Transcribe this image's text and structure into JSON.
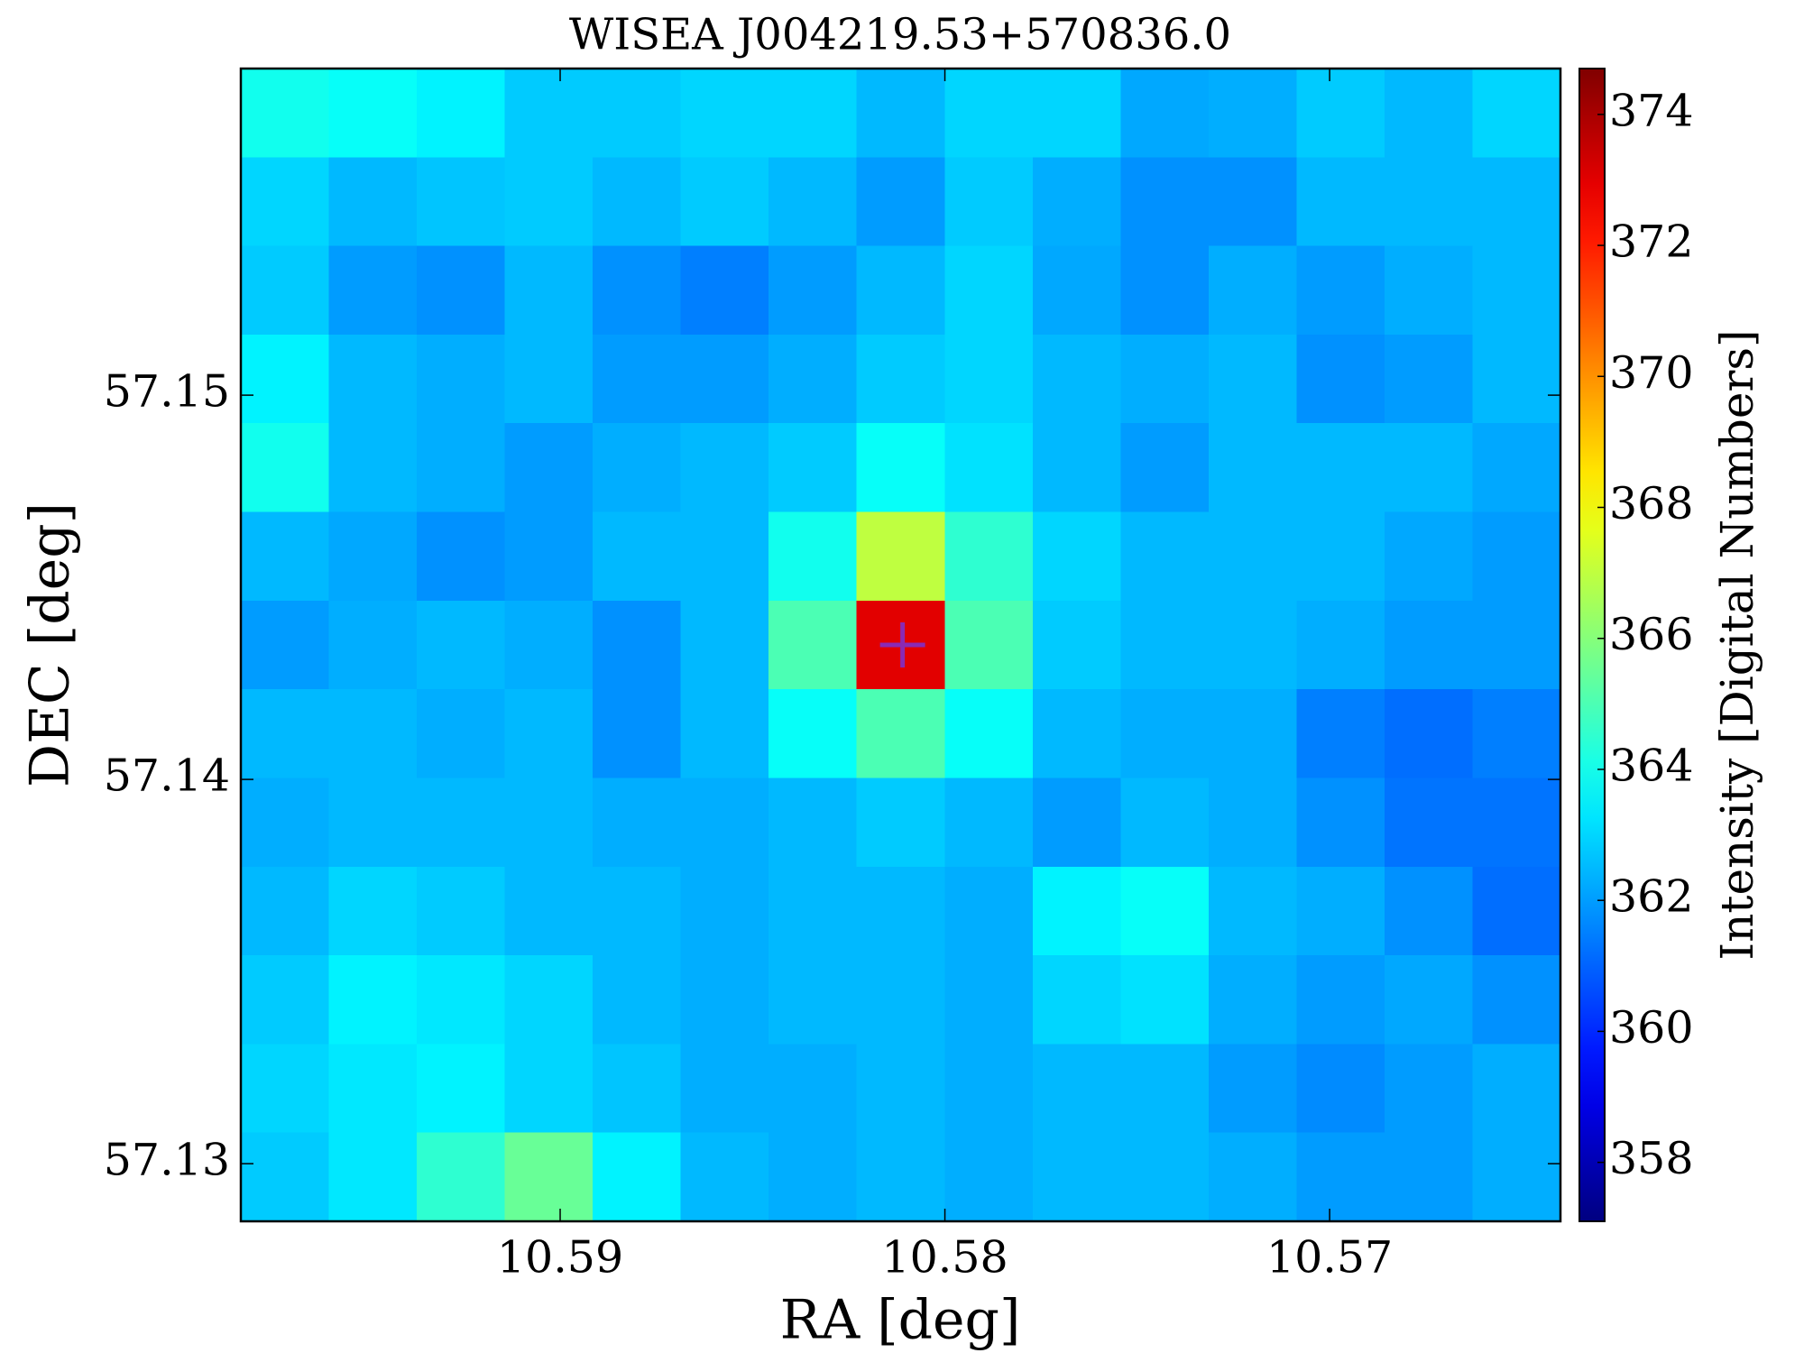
{
  "chart_data": {
    "type": "heatmap",
    "title": "WISEA J004219.53+570836.0",
    "x_label": "RA [deg]",
    "y_label": "DEC [deg]",
    "colorbar_label": "Intensity [Digital Numbers]",
    "colormap": "jet",
    "xlim": [
      10.5983,
      10.564
    ],
    "xticks": [
      10.59,
      10.58,
      10.57
    ],
    "ylim": [
      57.1285,
      57.1585
    ],
    "yticks": [
      57.13,
      57.14,
      57.15
    ],
    "clim": [
      357.1,
      374.7
    ],
    "cticks": [
      358,
      360,
      362,
      364,
      366,
      368,
      370,
      372,
      374
    ],
    "marker": {
      "x": 10.5811,
      "y": 57.1435,
      "color": "#8a2ab4"
    },
    "z": [
      [
        364,
        363.8,
        363.5,
        362.8,
        362.8,
        363,
        363,
        362.5,
        363,
        363,
        362.2,
        362.3,
        362.8,
        362.5,
        363
      ],
      [
        363,
        362.5,
        362.7,
        362.8,
        362.5,
        362.8,
        362.5,
        362,
        362.8,
        362.3,
        361.8,
        361.8,
        362.5,
        362.5,
        362.5
      ],
      [
        362.8,
        362,
        361.8,
        362.5,
        361.8,
        361.5,
        362,
        362.5,
        363,
        362.2,
        361.8,
        362.3,
        362,
        362.3,
        362.5
      ],
      [
        363.5,
        362.5,
        362.3,
        362.5,
        362,
        362,
        362.3,
        362.8,
        363,
        362.5,
        362.3,
        362.5,
        361.8,
        362,
        362.5
      ],
      [
        364,
        362.5,
        362.3,
        362,
        362.3,
        362.5,
        362.8,
        363.8,
        363.2,
        362.5,
        362,
        362.5,
        362.5,
        362.5,
        362.2
      ],
      [
        362.5,
        362.2,
        361.8,
        362,
        362.5,
        362.5,
        364,
        367,
        364.5,
        363,
        362.5,
        362.5,
        362.5,
        362.2,
        362
      ],
      [
        362,
        362.3,
        362.5,
        362.3,
        361.8,
        362.5,
        365,
        373,
        365,
        362.8,
        362.5,
        362.5,
        362.3,
        362,
        362
      ],
      [
        362.5,
        362.5,
        362.3,
        362.5,
        361.8,
        362.5,
        363.8,
        365,
        363.8,
        362.5,
        362.3,
        362.3,
        361.5,
        361.2,
        361.5
      ],
      [
        362.3,
        362.5,
        362.5,
        362.5,
        362.3,
        362.3,
        362.5,
        362.8,
        362.5,
        362,
        362.5,
        362.3,
        361.8,
        361.3,
        361.3
      ],
      [
        362.5,
        363,
        362.8,
        362.5,
        362.5,
        362.3,
        362.5,
        362.5,
        362.3,
        363.5,
        363.8,
        362.5,
        362.3,
        361.8,
        361.2
      ],
      [
        362.8,
        363.5,
        363.3,
        363,
        362.5,
        362.3,
        362.5,
        362.5,
        362.3,
        363,
        363.2,
        362.3,
        362,
        362.2,
        361.8
      ],
      [
        363,
        363.3,
        363.5,
        363,
        362.7,
        362.3,
        362.3,
        362.5,
        362.3,
        362.5,
        362.5,
        362,
        361.7,
        362,
        362.3
      ],
      [
        362.8,
        363.3,
        364.5,
        365.5,
        363.5,
        362.5,
        362.3,
        362.5,
        362.3,
        362.5,
        362.5,
        362.3,
        362,
        362,
        362.3
      ]
    ]
  }
}
